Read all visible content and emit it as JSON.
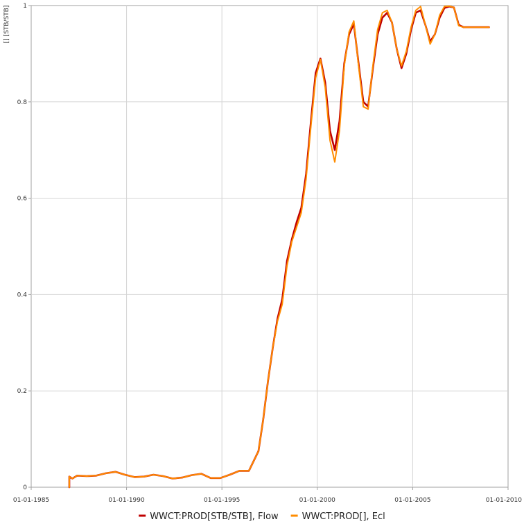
{
  "chart_data": {
    "type": "line",
    "title": "",
    "ylabel": "[] [STB/STB]",
    "xlabel": "",
    "xlim": [
      "1985-01-01",
      "2010-01-01"
    ],
    "ylim": [
      0,
      1
    ],
    "grid": true,
    "legend_position": "bottom",
    "x_ticks": [
      "01-01-1985",
      "01-01-1990",
      "01-01-1995",
      "01-01-2000",
      "01-01-2005",
      "01-01-2010"
    ],
    "y_ticks": [
      "0",
      "0.2",
      "0.4",
      "0.6",
      "0.8",
      "1"
    ],
    "x": [
      "1987-01-01",
      "1987-03-01",
      "1987-06-01",
      "1987-12-01",
      "1988-06-01",
      "1988-12-01",
      "1989-06-01",
      "1989-12-01",
      "1990-06-01",
      "1990-12-01",
      "1991-06-01",
      "1991-12-01",
      "1992-06-01",
      "1992-12-01",
      "1993-06-01",
      "1993-12-01",
      "1994-06-01",
      "1994-12-01",
      "1995-06-01",
      "1995-12-01",
      "1996-06-01",
      "1996-12-01",
      "1997-03-01",
      "1997-06-01",
      "1997-09-01",
      "1997-12-01",
      "1998-03-01",
      "1998-06-01",
      "1998-09-01",
      "1998-12-01",
      "1999-03-01",
      "1999-06-01",
      "1999-09-01",
      "1999-12-01",
      "2000-03-01",
      "2000-06-01",
      "2000-09-01",
      "2000-12-01",
      "2001-03-01",
      "2001-06-01",
      "2001-09-01",
      "2001-12-01",
      "2002-03-01",
      "2002-06-01",
      "2002-09-01",
      "2002-12-01",
      "2003-03-01",
      "2003-06-01",
      "2003-09-01",
      "2003-12-01",
      "2004-03-01",
      "2004-06-01",
      "2004-09-01",
      "2004-12-01",
      "2005-03-01",
      "2005-06-01",
      "2005-09-01",
      "2005-12-01",
      "2006-03-01",
      "2006-06-01",
      "2006-09-01",
      "2006-12-01",
      "2007-03-01",
      "2007-06-01",
      "2007-09-01",
      "2007-12-01",
      "2008-03-01",
      "2008-06-01",
      "2008-09-01",
      "2008-12-01",
      "2009-01-01"
    ],
    "series": [
      {
        "name": "WWCT:PROD[STB/STB], Flow",
        "color": "#c00000",
        "values": [
          0.022,
          0.018,
          0.024,
          0.023,
          0.024,
          0.029,
          0.032,
          0.026,
          0.021,
          0.022,
          0.026,
          0.023,
          0.018,
          0.02,
          0.025,
          0.028,
          0.019,
          0.019,
          0.026,
          0.034,
          0.034,
          0.075,
          0.14,
          0.22,
          0.29,
          0.35,
          0.39,
          0.47,
          0.515,
          0.55,
          0.58,
          0.65,
          0.76,
          0.86,
          0.89,
          0.84,
          0.74,
          0.7,
          0.76,
          0.88,
          0.94,
          0.962,
          0.88,
          0.8,
          0.79,
          0.87,
          0.94,
          0.975,
          0.985,
          0.965,
          0.91,
          0.87,
          0.9,
          0.95,
          0.985,
          0.99,
          0.96,
          0.925,
          0.94,
          0.975,
          0.995,
          0.998,
          0.996,
          0.96,
          0.955,
          0.955,
          0.955,
          0.955,
          0.955,
          0.955,
          0.955
        ]
      },
      {
        "name": "WWCT:PROD[], Ecl",
        "color": "#ff8c00",
        "values": [
          0.022,
          0.018,
          0.024,
          0.023,
          0.024,
          0.029,
          0.032,
          0.026,
          0.021,
          0.022,
          0.026,
          0.023,
          0.018,
          0.02,
          0.025,
          0.028,
          0.019,
          0.019,
          0.026,
          0.034,
          0.034,
          0.075,
          0.14,
          0.22,
          0.29,
          0.345,
          0.38,
          0.46,
          0.51,
          0.54,
          0.57,
          0.64,
          0.75,
          0.85,
          0.888,
          0.83,
          0.72,
          0.675,
          0.74,
          0.875,
          0.945,
          0.968,
          0.875,
          0.79,
          0.785,
          0.875,
          0.95,
          0.985,
          0.99,
          0.965,
          0.91,
          0.875,
          0.905,
          0.955,
          0.99,
          0.998,
          0.96,
          0.92,
          0.94,
          0.98,
          0.998,
          0.999,
          0.996,
          0.958,
          0.955,
          0.955,
          0.955,
          0.955,
          0.955,
          0.955,
          0.955
        ]
      }
    ]
  }
}
